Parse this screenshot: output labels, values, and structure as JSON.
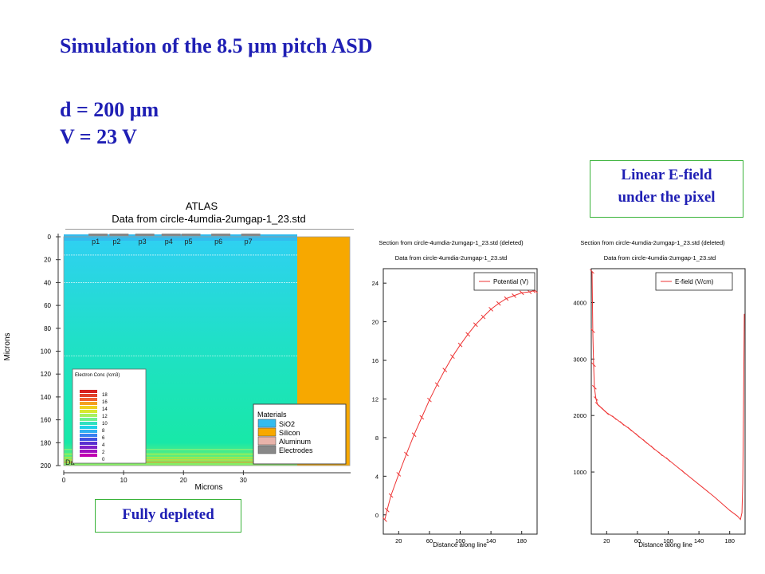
{
  "slide": {
    "title": "Simulation of the 8.5 μm pitch ASD",
    "param_d": "d = 200 μm",
    "param_v": "V =  23 V",
    "note_linear_line1": "Linear E-field",
    "note_linear_line2": "under the pixel",
    "note_depleted": "Fully depleted"
  },
  "colors": {
    "slide_text": "#1f1fb4",
    "note_border": "#39b339",
    "oxide": "#33bbee",
    "silicon": "#f7a800",
    "aluminum": "#e8b3aa",
    "electrodes": "#888888",
    "curve": "#ee3333"
  },
  "chart_data": [
    {
      "type": "heatmap",
      "title": "ATLAS",
      "subtitle": "Data from circle-4umdia-2umgap-1_23.std",
      "xlabel": "Microns",
      "ylabel": "Microns",
      "xlim": [
        0,
        39
      ],
      "ylim": [
        200,
        0
      ],
      "x_ticks": [
        "0",
        "10",
        "20",
        "30"
      ],
      "y_ticks": [
        "0",
        "20",
        "40",
        "60",
        "80",
        "100",
        "120",
        "140",
        "160",
        "180",
        "200"
      ],
      "pixel_labels": [
        "p1",
        "p2",
        "p3",
        "p4",
        "p5",
        "p6",
        "p7"
      ],
      "colorbar": {
        "title": "Electron Conc (/cm3)",
        "tick_labels": [
          "18",
          "16",
          "14",
          "12",
          "10",
          "8",
          "6",
          "4",
          "2",
          "0"
        ]
      },
      "materials_legend": {
        "title": "Materials",
        "items": [
          "SiO2",
          "Silicon",
          "Aluminum",
          "Electrodes"
        ]
      },
      "corner_text": "Da"
    },
    {
      "type": "line",
      "title": "Section from circle-4umdia-2umgap-1_23.std (deleted)",
      "subtitle": "Data from circle-4umdia-2umgap-1_23.std",
      "xlabel": "Distance along line",
      "ylabel": "",
      "xlim": [
        0,
        200
      ],
      "ylim": [
        -2,
        25.5
      ],
      "x_ticks": [
        20,
        60,
        100,
        140,
        180
      ],
      "y_ticks": [
        0,
        4,
        8,
        12,
        16,
        20,
        24
      ],
      "series": [
        {
          "name": "Potential (V)",
          "x": [
            2,
            5,
            10,
            20,
            30,
            40,
            50,
            60,
            70,
            80,
            90,
            100,
            110,
            120,
            130,
            140,
            150,
            160,
            170,
            180,
            190,
            195,
            198
          ],
          "y": [
            -0.5,
            0.5,
            2.0,
            4.2,
            6.3,
            8.3,
            10.1,
            11.9,
            13.5,
            15.0,
            16.4,
            17.6,
            18.7,
            19.7,
            20.5,
            21.3,
            21.9,
            22.4,
            22.7,
            23.0,
            23.1,
            23.2,
            23.2
          ]
        }
      ]
    },
    {
      "type": "line",
      "title": "Section from circle-4umdia-2umgap-1_23.std (deleted)",
      "subtitle": "Data from circle-4umdia-2umgap-1_23.std",
      "xlabel": "Distance along line",
      "ylabel": "",
      "xlim": [
        0,
        200
      ],
      "ylim": [
        -100,
        4600
      ],
      "x_ticks": [
        20,
        60,
        100,
        140,
        180
      ],
      "y_ticks": [
        1000,
        2000,
        3000,
        4000
      ],
      "series": [
        {
          "name": "E-field (V/cm)",
          "x": [
            1,
            2,
            3,
            4,
            6,
            8,
            12,
            16,
            20,
            30,
            40,
            50,
            60,
            70,
            80,
            90,
            100,
            120,
            140,
            160,
            180,
            190,
            194,
            196,
            197,
            198,
            199
          ],
          "y": [
            4550,
            3500,
            2900,
            2500,
            2300,
            2200,
            2150,
            2100,
            2050,
            1960,
            1860,
            1760,
            1650,
            1540,
            1430,
            1320,
            1220,
            1000,
            780,
            560,
            320,
            220,
            160,
            280,
            800,
            2200,
            3800
          ]
        }
      ]
    }
  ]
}
